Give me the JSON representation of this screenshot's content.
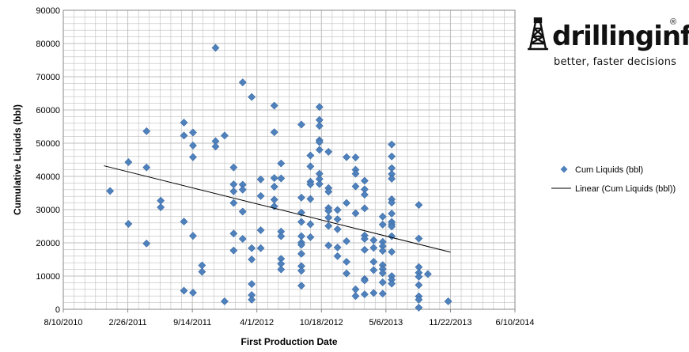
{
  "logo": {
    "name": "drillinginfo",
    "registered": "®",
    "tagline": "better, faster decisions"
  },
  "chart_data": {
    "type": "scatter",
    "xlabel": "First Production Date",
    "ylabel": "Cumulative Liquids (bbl)",
    "x_tick_labels": [
      "8/10/2010",
      "2/26/2011",
      "9/14/2011",
      "4/1/2012",
      "10/18/2012",
      "5/6/2013",
      "11/22/2013",
      "6/10/2014"
    ],
    "xlim": [
      "2010-08-10",
      "2014-06-10"
    ],
    "ylim": [
      0,
      90000
    ],
    "y_ticks": [
      0,
      10000,
      20000,
      30000,
      40000,
      50000,
      60000,
      70000,
      80000,
      90000
    ],
    "grid": true,
    "legend_position": "right",
    "colors": {
      "marker": "#4f81bd",
      "trend": "#000000",
      "grid": "#bfbfbf"
    },
    "series": [
      {
        "name": "Cum Liquids (bbl)",
        "marker": "diamond",
        "points": [
          [
            "2011-01-02",
            35600
          ],
          [
            "2011-02-28",
            44300
          ],
          [
            "2011-02-28",
            25700
          ],
          [
            "2011-04-25",
            53600
          ],
          [
            "2011-04-25",
            42700
          ],
          [
            "2011-04-25",
            19800
          ],
          [
            "2011-06-08",
            32700
          ],
          [
            "2011-06-08",
            30700
          ],
          [
            "2011-08-19",
            56200
          ],
          [
            "2011-08-19",
            52300
          ],
          [
            "2011-08-19",
            26400
          ],
          [
            "2011-08-19",
            5600
          ],
          [
            "2011-09-16",
            53200
          ],
          [
            "2011-09-16",
            49300
          ],
          [
            "2011-09-16",
            45800
          ],
          [
            "2011-09-16",
            22100
          ],
          [
            "2011-09-16",
            5000
          ],
          [
            "2011-10-14",
            13200
          ],
          [
            "2011-10-14",
            11300
          ],
          [
            "2011-11-25",
            78700
          ],
          [
            "2011-11-25",
            50600
          ],
          [
            "2011-11-25",
            49000
          ],
          [
            "2011-12-23",
            52300
          ],
          [
            "2011-12-23",
            2400
          ],
          [
            "2012-01-20",
            42700
          ],
          [
            "2012-01-20",
            37600
          ],
          [
            "2012-01-20",
            35500
          ],
          [
            "2012-01-20",
            32000
          ],
          [
            "2012-01-20",
            22800
          ],
          [
            "2012-01-20",
            17700
          ],
          [
            "2012-02-17",
            68300
          ],
          [
            "2012-02-17",
            37500
          ],
          [
            "2012-02-17",
            36000
          ],
          [
            "2012-02-17",
            29400
          ],
          [
            "2012-02-17",
            21200
          ],
          [
            "2012-03-16",
            63900
          ],
          [
            "2012-03-16",
            18400
          ],
          [
            "2012-03-16",
            15000
          ],
          [
            "2012-03-16",
            7600
          ],
          [
            "2012-03-16",
            4300
          ],
          [
            "2012-03-16",
            2900
          ],
          [
            "2012-04-13",
            39100
          ],
          [
            "2012-04-13",
            34100
          ],
          [
            "2012-04-13",
            23800
          ],
          [
            "2012-04-13",
            18400
          ],
          [
            "2012-05-25",
            61300
          ],
          [
            "2012-05-25",
            53300
          ],
          [
            "2012-05-25",
            39500
          ],
          [
            "2012-05-25",
            36900
          ],
          [
            "2012-05-25",
            33000
          ],
          [
            "2012-05-25",
            31000
          ],
          [
            "2012-06-15",
            43900
          ],
          [
            "2012-06-15",
            39400
          ],
          [
            "2012-06-15",
            23400
          ],
          [
            "2012-06-15",
            22000
          ],
          [
            "2012-06-15",
            15200
          ],
          [
            "2012-06-15",
            13700
          ],
          [
            "2012-06-15",
            12000
          ],
          [
            "2012-08-17",
            55600
          ],
          [
            "2012-08-17",
            33600
          ],
          [
            "2012-08-17",
            29100
          ],
          [
            "2012-08-17",
            26300
          ],
          [
            "2012-08-17",
            22000
          ],
          [
            "2012-08-17",
            20100
          ],
          [
            "2012-08-17",
            19400
          ],
          [
            "2012-08-17",
            16700
          ],
          [
            "2012-08-17",
            13000
          ],
          [
            "2012-08-17",
            11600
          ],
          [
            "2012-08-17",
            7100
          ],
          [
            "2012-09-14",
            46300
          ],
          [
            "2012-09-14",
            43000
          ],
          [
            "2012-09-14",
            38400
          ],
          [
            "2012-09-14",
            37600
          ],
          [
            "2012-09-14",
            33200
          ],
          [
            "2012-09-14",
            25600
          ],
          [
            "2012-09-14",
            21700
          ],
          [
            "2012-10-12",
            60900
          ],
          [
            "2012-10-12",
            57000
          ],
          [
            "2012-10-12",
            55200
          ],
          [
            "2012-10-12",
            50900
          ],
          [
            "2012-10-12",
            50300
          ],
          [
            "2012-10-12",
            48000
          ],
          [
            "2012-10-12",
            40800
          ],
          [
            "2012-10-12",
            39200
          ],
          [
            "2012-10-12",
            37700
          ],
          [
            "2012-11-09",
            47400
          ],
          [
            "2012-11-09",
            36500
          ],
          [
            "2012-11-09",
            35400
          ],
          [
            "2012-11-09",
            30500
          ],
          [
            "2012-11-09",
            29600
          ],
          [
            "2012-11-09",
            27600
          ],
          [
            "2012-11-09",
            25100
          ],
          [
            "2012-11-09",
            19200
          ],
          [
            "2012-12-07",
            29900
          ],
          [
            "2012-12-07",
            27100
          ],
          [
            "2012-12-07",
            24100
          ],
          [
            "2012-12-07",
            18600
          ],
          [
            "2012-12-07",
            16000
          ],
          [
            "2013-01-04",
            45800
          ],
          [
            "2013-01-04",
            32000
          ],
          [
            "2013-01-04",
            20500
          ],
          [
            "2013-01-04",
            14300
          ],
          [
            "2013-01-04",
            10800
          ],
          [
            "2013-02-01",
            45700
          ],
          [
            "2013-02-01",
            42000
          ],
          [
            "2013-02-01",
            40800
          ],
          [
            "2013-02-01",
            37000
          ],
          [
            "2013-02-01",
            28900
          ],
          [
            "2013-02-01",
            6000
          ],
          [
            "2013-02-01",
            4000
          ],
          [
            "2013-03-01",
            38700
          ],
          [
            "2013-03-01",
            36100
          ],
          [
            "2013-03-01",
            34500
          ],
          [
            "2013-03-01",
            30400
          ],
          [
            "2013-03-01",
            22200
          ],
          [
            "2013-03-01",
            21200
          ],
          [
            "2013-03-01",
            17900
          ],
          [
            "2013-03-01",
            9100
          ],
          [
            "2013-03-01",
            8700
          ],
          [
            "2013-03-01",
            4500
          ],
          [
            "2013-03-29",
            20800
          ],
          [
            "2013-03-29",
            18500
          ],
          [
            "2013-03-29",
            14300
          ],
          [
            "2013-03-29",
            11800
          ],
          [
            "2013-03-29",
            4900
          ],
          [
            "2013-04-26",
            27900
          ],
          [
            "2013-04-26",
            25500
          ],
          [
            "2013-04-26",
            20300
          ],
          [
            "2013-04-26",
            19000
          ],
          [
            "2013-04-26",
            17600
          ],
          [
            "2013-04-26",
            13300
          ],
          [
            "2013-04-26",
            12100
          ],
          [
            "2013-04-26",
            10900
          ],
          [
            "2013-04-26",
            8100
          ],
          [
            "2013-04-26",
            4700
          ],
          [
            "2013-05-24",
            49600
          ],
          [
            "2013-05-24",
            46000
          ],
          [
            "2013-05-24",
            42500
          ],
          [
            "2013-05-24",
            40700
          ],
          [
            "2013-05-24",
            39300
          ],
          [
            "2013-05-24",
            33100
          ],
          [
            "2013-05-24",
            32100
          ],
          [
            "2013-05-24",
            28800
          ],
          [
            "2013-05-24",
            26300
          ],
          [
            "2013-05-24",
            25600
          ],
          [
            "2013-05-24",
            24900
          ],
          [
            "2013-05-24",
            22000
          ],
          [
            "2013-05-24",
            17300
          ],
          [
            "2013-05-24",
            10000
          ],
          [
            "2013-05-24",
            8900
          ],
          [
            "2013-05-24",
            7700
          ],
          [
            "2013-08-16",
            31400
          ],
          [
            "2013-08-16",
            21300
          ],
          [
            "2013-08-16",
            12700
          ],
          [
            "2013-08-16",
            11000
          ],
          [
            "2013-08-16",
            9800
          ],
          [
            "2013-08-16",
            7300
          ],
          [
            "2013-08-16",
            3900
          ],
          [
            "2013-08-16",
            2900
          ],
          [
            "2013-08-16",
            500
          ],
          [
            "2013-09-13",
            10600
          ],
          [
            "2013-11-15",
            2400
          ]
        ]
      },
      {
        "name": "Linear (Cum Liquids (bbl))",
        "type": "line",
        "points": [
          [
            "2010-12-14",
            43200
          ],
          [
            "2013-11-22",
            17200
          ]
        ]
      }
    ]
  }
}
